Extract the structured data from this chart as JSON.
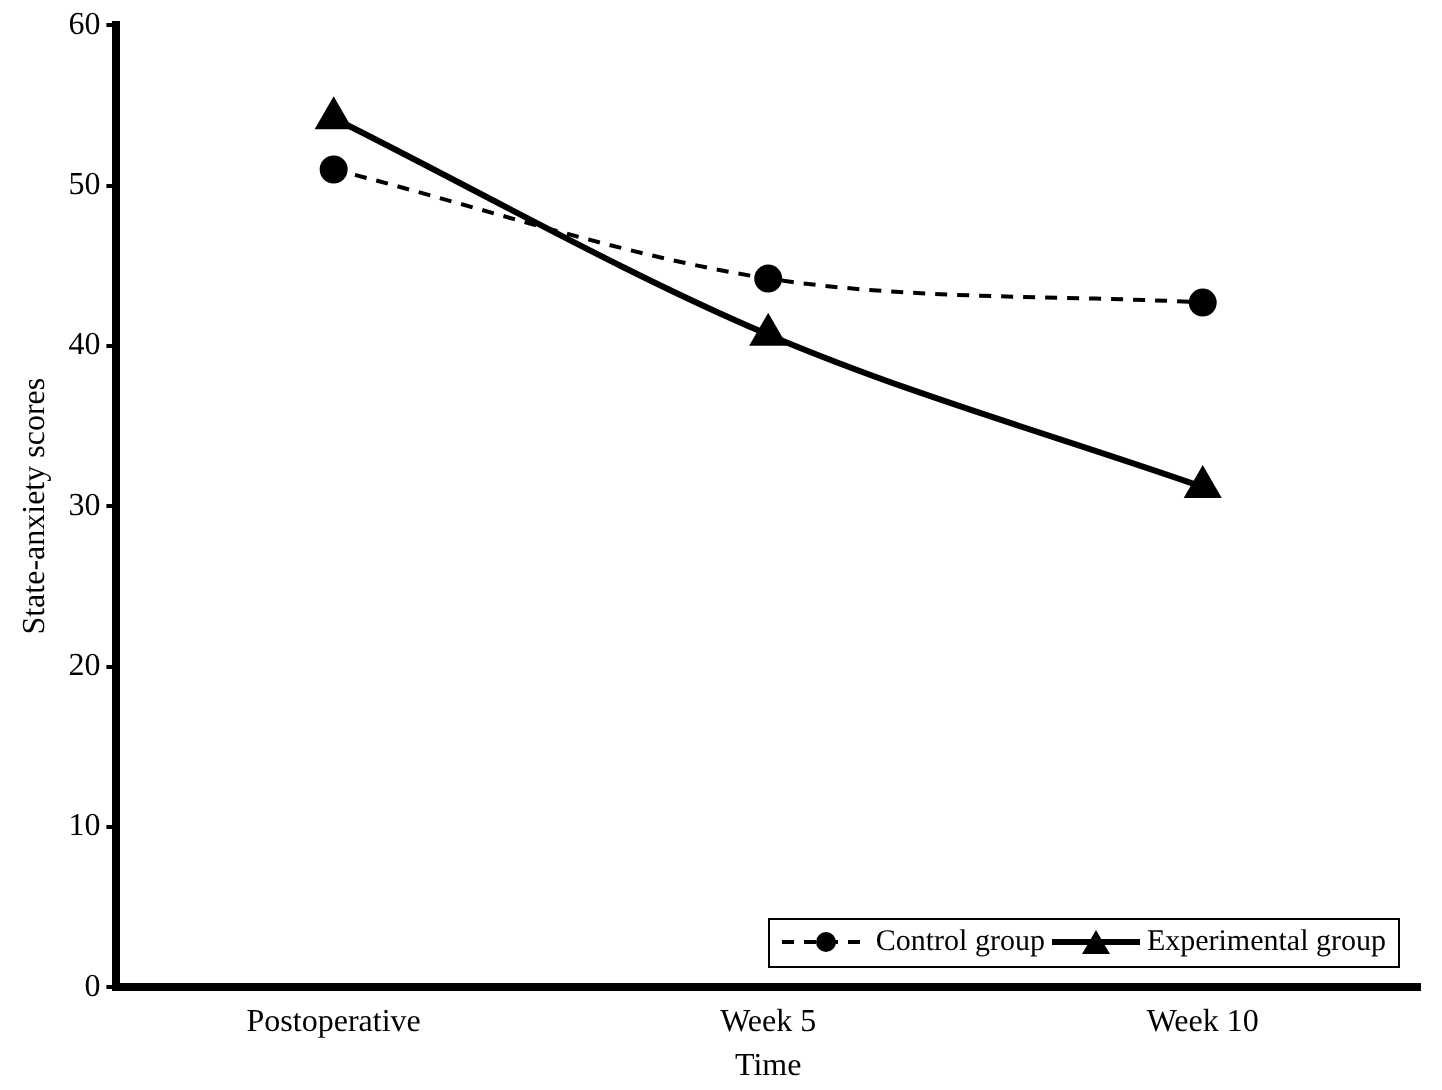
{
  "chart_data": {
    "type": "line",
    "xlabel": "Time",
    "ylabel": "State-anxiety scores",
    "categories": [
      "Postoperative",
      "Week 5",
      "Week 10"
    ],
    "series": [
      {
        "name": "Control group",
        "color": "#000000",
        "values": [
          51.0,
          44.2,
          42.7
        ],
        "marker": "circle",
        "line_style": "dashed"
      },
      {
        "name": "Experimental group",
        "color": "#000000",
        "values": [
          54.2,
          40.7,
          31.2
        ],
        "marker": "triangle",
        "line_style": "solid"
      }
    ],
    "ylim": [
      0,
      60
    ],
    "yticks": [
      0,
      10,
      20,
      30,
      40,
      50,
      60
    ],
    "grid": false,
    "legend": "bottom right"
  }
}
